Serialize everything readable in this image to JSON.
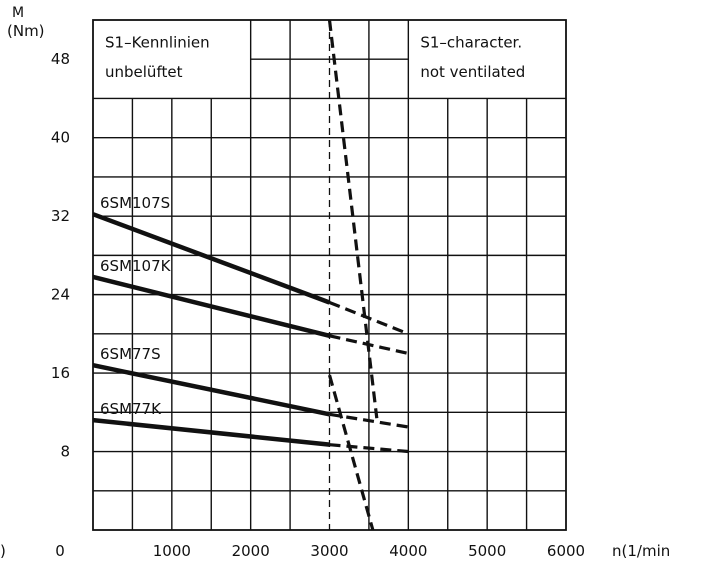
{
  "chart_data": {
    "type": "line",
    "ylabel_top": "M",
    "ylabel_unit": "(Nm)",
    "xlabel": "n(1/min",
    "left_edge_text": ")",
    "xlim": [
      0,
      6000
    ],
    "ylim": [
      0,
      52
    ],
    "x_ticks": [
      0,
      1000,
      2000,
      3000,
      4000,
      5000,
      6000
    ],
    "y_ticks": [
      8,
      16,
      24,
      32,
      40,
      48
    ],
    "x_tick_labels": [
      "0",
      "1000",
      "2000",
      "3000",
      "4000",
      "5000",
      "6000"
    ],
    "y_tick_labels": [
      "8",
      "16",
      "24",
      "32",
      "40",
      "48"
    ],
    "grid": true,
    "boxes": {
      "left": {
        "line1": "S1–Kennlinien",
        "line2": "unbelüftet"
      },
      "right": {
        "line1": "S1–character.",
        "line2": "not ventilated"
      }
    },
    "series": [
      {
        "name": "6SM107S",
        "solid": [
          [
            0,
            32.2
          ],
          [
            3000,
            23.2
          ]
        ],
        "dashed": [
          [
            3000,
            23.2
          ],
          [
            4000,
            20.0
          ]
        ]
      },
      {
        "name": "6SM107K",
        "solid": [
          [
            0,
            25.8
          ],
          [
            3000,
            19.8
          ]
        ],
        "dashed": [
          [
            3000,
            19.8
          ],
          [
            4000,
            18.0
          ]
        ]
      },
      {
        "name": "6SM77S",
        "solid": [
          [
            0,
            16.8
          ],
          [
            3000,
            11.8
          ]
        ],
        "dashed": [
          [
            3000,
            11.8
          ],
          [
            4000,
            10.5
          ]
        ]
      },
      {
        "name": "6SM77K",
        "solid": [
          [
            0,
            11.2
          ],
          [
            3000,
            8.7
          ]
        ],
        "dashed": [
          [
            3000,
            8.7
          ],
          [
            4000,
            8.0
          ]
        ]
      }
    ],
    "limit_curves": [
      {
        "points": [
          [
            3000,
            52
          ],
          [
            3600,
            11.4
          ]
        ]
      },
      {
        "points": [
          [
            3000,
            15.8
          ],
          [
            3550,
            0
          ]
        ]
      }
    ],
    "reference_line_x": 3000
  }
}
